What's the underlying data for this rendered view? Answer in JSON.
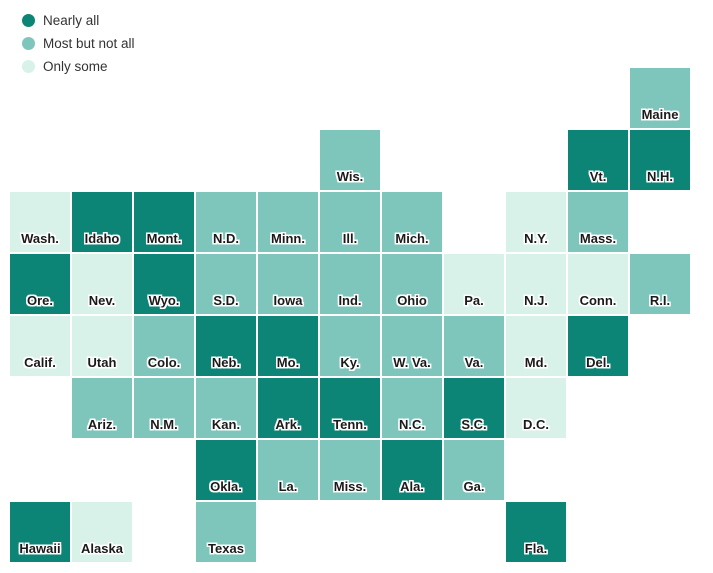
{
  "legend": {
    "position": "top-left"
  },
  "chart_data": {
    "type": "heatmap",
    "variant": "us-state-tile-grid-map",
    "title": "",
    "legend_position": "top-left",
    "grid": {
      "columns": 11,
      "rows": 8
    },
    "categories": [
      {
        "label": "Nearly all",
        "color": "#0c8577"
      },
      {
        "label": "Most but not all",
        "color": "#7ec6bb"
      },
      {
        "label": "Only some",
        "color": "#d8f1e9"
      }
    ],
    "states": [
      {
        "label": "Maine",
        "row": 1,
        "col": 11,
        "value": "Most but not all"
      },
      {
        "label": "Wis.",
        "row": 2,
        "col": 6,
        "value": "Most but not all"
      },
      {
        "label": "Vt.",
        "row": 2,
        "col": 10,
        "value": "Nearly all"
      },
      {
        "label": "N.H.",
        "row": 2,
        "col": 11,
        "value": "Nearly all"
      },
      {
        "label": "Wash.",
        "row": 3,
        "col": 1,
        "value": "Only some"
      },
      {
        "label": "Idaho",
        "row": 3,
        "col": 2,
        "value": "Nearly all"
      },
      {
        "label": "Mont.",
        "row": 3,
        "col": 3,
        "value": "Nearly all"
      },
      {
        "label": "N.D.",
        "row": 3,
        "col": 4,
        "value": "Most but not all"
      },
      {
        "label": "Minn.",
        "row": 3,
        "col": 5,
        "value": "Most but not all"
      },
      {
        "label": "Ill.",
        "row": 3,
        "col": 6,
        "value": "Most but not all"
      },
      {
        "label": "Mich.",
        "row": 3,
        "col": 7,
        "value": "Most but not all"
      },
      {
        "label": "N.Y.",
        "row": 3,
        "col": 9,
        "value": "Only some"
      },
      {
        "label": "Mass.",
        "row": 3,
        "col": 10,
        "value": "Most but not all"
      },
      {
        "label": "Ore.",
        "row": 4,
        "col": 1,
        "value": "Nearly all"
      },
      {
        "label": "Nev.",
        "row": 4,
        "col": 2,
        "value": "Only some"
      },
      {
        "label": "Wyo.",
        "row": 4,
        "col": 3,
        "value": "Nearly all"
      },
      {
        "label": "S.D.",
        "row": 4,
        "col": 4,
        "value": "Most but not all"
      },
      {
        "label": "Iowa",
        "row": 4,
        "col": 5,
        "value": "Most but not all"
      },
      {
        "label": "Ind.",
        "row": 4,
        "col": 6,
        "value": "Most but not all"
      },
      {
        "label": "Ohio",
        "row": 4,
        "col": 7,
        "value": "Most but not all"
      },
      {
        "label": "Pa.",
        "row": 4,
        "col": 8,
        "value": "Only some"
      },
      {
        "label": "N.J.",
        "row": 4,
        "col": 9,
        "value": "Only some"
      },
      {
        "label": "Conn.",
        "row": 4,
        "col": 10,
        "value": "Only some"
      },
      {
        "label": "R.I.",
        "row": 4,
        "col": 11,
        "value": "Most but not all"
      },
      {
        "label": "Calif.",
        "row": 5,
        "col": 1,
        "value": "Only some"
      },
      {
        "label": "Utah",
        "row": 5,
        "col": 2,
        "value": "Only some"
      },
      {
        "label": "Colo.",
        "row": 5,
        "col": 3,
        "value": "Most but not all"
      },
      {
        "label": "Neb.",
        "row": 5,
        "col": 4,
        "value": "Nearly all"
      },
      {
        "label": "Mo.",
        "row": 5,
        "col": 5,
        "value": "Nearly all"
      },
      {
        "label": "Ky.",
        "row": 5,
        "col": 6,
        "value": "Most but not all"
      },
      {
        "label": "W. Va.",
        "row": 5,
        "col": 7,
        "value": "Most but not all"
      },
      {
        "label": "Va.",
        "row": 5,
        "col": 8,
        "value": "Most but not all"
      },
      {
        "label": "Md.",
        "row": 5,
        "col": 9,
        "value": "Only some"
      },
      {
        "label": "Del.",
        "row": 5,
        "col": 10,
        "value": "Nearly all"
      },
      {
        "label": "Ariz.",
        "row": 6,
        "col": 2,
        "value": "Most but not all"
      },
      {
        "label": "N.M.",
        "row": 6,
        "col": 3,
        "value": "Most but not all"
      },
      {
        "label": "Kan.",
        "row": 6,
        "col": 4,
        "value": "Most but not all"
      },
      {
        "label": "Ark.",
        "row": 6,
        "col": 5,
        "value": "Nearly all"
      },
      {
        "label": "Tenn.",
        "row": 6,
        "col": 6,
        "value": "Nearly all"
      },
      {
        "label": "N.C.",
        "row": 6,
        "col": 7,
        "value": "Most but not all"
      },
      {
        "label": "S.C.",
        "row": 6,
        "col": 8,
        "value": "Nearly all"
      },
      {
        "label": "D.C.",
        "row": 6,
        "col": 9,
        "value": "Only some"
      },
      {
        "label": "Okla.",
        "row": 7,
        "col": 4,
        "value": "Nearly all"
      },
      {
        "label": "La.",
        "row": 7,
        "col": 5,
        "value": "Most but not all"
      },
      {
        "label": "Miss.",
        "row": 7,
        "col": 6,
        "value": "Most but not all"
      },
      {
        "label": "Ala.",
        "row": 7,
        "col": 7,
        "value": "Nearly all"
      },
      {
        "label": "Ga.",
        "row": 7,
        "col": 8,
        "value": "Most but not all"
      },
      {
        "label": "Hawaii",
        "row": 8,
        "col": 1,
        "value": "Nearly all"
      },
      {
        "label": "Alaska",
        "row": 8,
        "col": 2,
        "value": "Only some"
      },
      {
        "label": "Texas",
        "row": 8,
        "col": 4,
        "value": "Most but not all"
      },
      {
        "label": "Fla.",
        "row": 8,
        "col": 9,
        "value": "Nearly all"
      }
    ]
  }
}
